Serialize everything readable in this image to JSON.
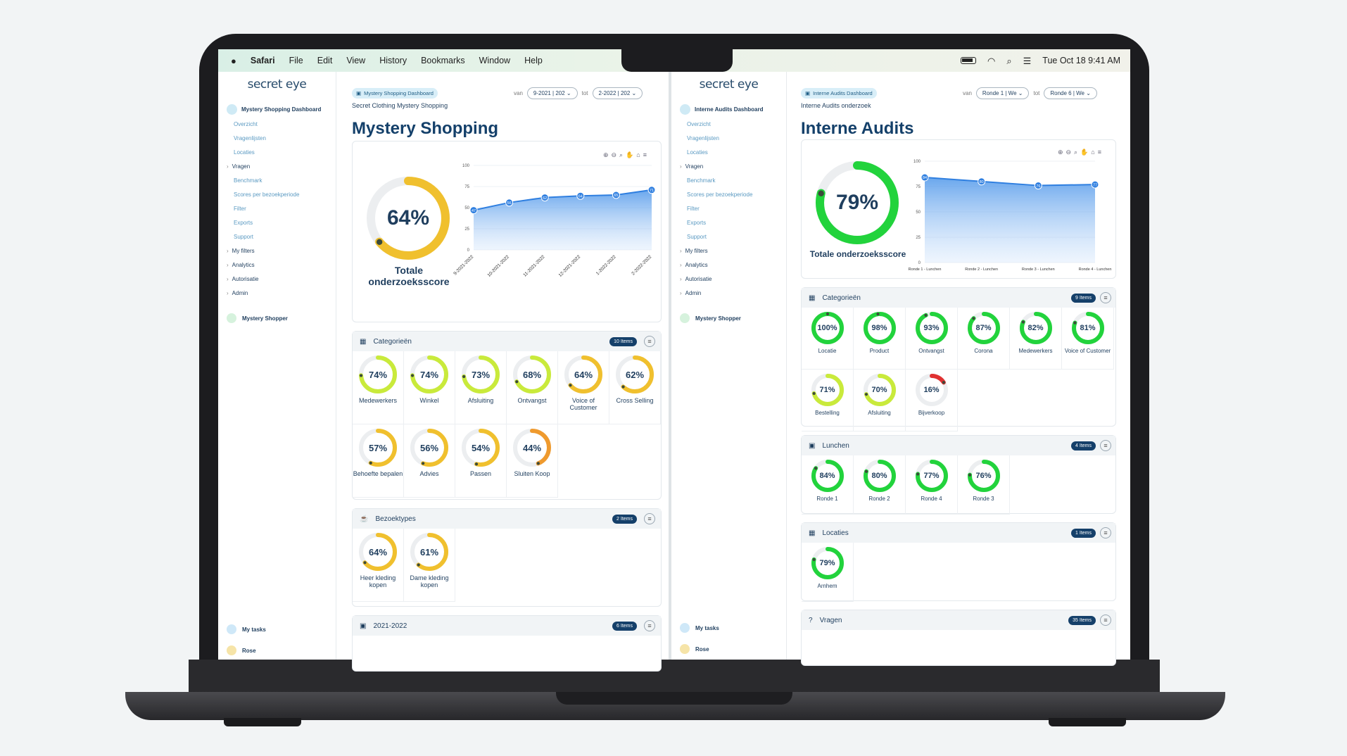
{
  "menubar": {
    "app": "Safari",
    "items": [
      "File",
      "Edit",
      "View",
      "History",
      "Bookmarks",
      "Window",
      "Help"
    ],
    "datetime": "Tue Oct 18  9:41 AM"
  },
  "colors": {
    "accent": "#15406a",
    "green": "#22d33c",
    "lime": "#c9ea3b",
    "orange": "#ef9a2e",
    "red": "#e03131"
  },
  "left": {
    "logo": "secret eye",
    "nav": {
      "dashboard": "Mystery Shopping Dashboard",
      "items": [
        "Overzicht",
        "Vragenlijsten",
        "Locaties"
      ],
      "vragen": "Vragen",
      "items2": [
        "Benchmark",
        "Scores per bezoekperiode",
        "Filter",
        "Exports",
        "Support"
      ],
      "groups": [
        "My filters",
        "Analytics",
        "Autorisatie",
        "Admin"
      ],
      "shopper": "Mystery Shopper",
      "tasks": "My tasks",
      "user": "Rose"
    },
    "chip": "Mystery Shopping Dashboard",
    "subtitle": "Secret Clothing Mystery Shopping",
    "title": "Mystery Shopping",
    "range": {
      "van": "van",
      "from": "9-2021 | 202",
      "tot": "tot",
      "to": "2-2022 | 202"
    },
    "total": {
      "value": 64,
      "label": "64%",
      "caption": "Totale onderzoeksscore"
    },
    "chart_data": {
      "type": "area",
      "x": [
        "9-2021-2022",
        "10-2021-2022",
        "11-2021-2022",
        "12-2021-2022",
        "1-2022-2022",
        "2-2022-2022"
      ],
      "y": [
        47,
        56,
        62,
        64,
        65,
        71
      ],
      "ylim": [
        0,
        100
      ],
      "yticks": [
        "100",
        "75",
        "50",
        "25",
        "0"
      ]
    },
    "categories": {
      "title": "Categorieën",
      "badge": "10 Items",
      "items": [
        {
          "label": "Medewerkers",
          "value": 74,
          "text": "74%"
        },
        {
          "label": "Winkel",
          "value": 74,
          "text": "74%"
        },
        {
          "label": "Afsluiting",
          "value": 73,
          "text": "73%"
        },
        {
          "label": "Ontvangst",
          "value": 68,
          "text": "68%"
        },
        {
          "label": "Voice of Customer",
          "value": 64,
          "text": "64%"
        },
        {
          "label": "Cross Selling",
          "value": 62,
          "text": "62%"
        },
        {
          "label": "Behoefte bepalen",
          "value": 57,
          "text": "57%"
        },
        {
          "label": "Advies",
          "value": 56,
          "text": "56%"
        },
        {
          "label": "Passen",
          "value": 54,
          "text": "54%"
        },
        {
          "label": "Sluiten Koop",
          "value": 44,
          "text": "44%"
        }
      ]
    },
    "bezoektypes": {
      "title": "Bezoektypes",
      "badge": "2 Items",
      "items": [
        {
          "label": "Heer kleding kopen",
          "value": 64,
          "text": "64%"
        },
        {
          "label": "Dame kleding kopen",
          "value": 61,
          "text": "61%"
        }
      ]
    },
    "period": {
      "title": "2021-2022",
      "badge": "6 Items"
    }
  },
  "right": {
    "logo": "secret eye",
    "nav": {
      "dashboard": "Interne Audits Dashboard",
      "items": [
        "Overzicht",
        "Vragenlijsten",
        "Locaties"
      ],
      "vragen": "Vragen",
      "items2": [
        "Benchmark",
        "Scores per bezoekperiode",
        "Filter",
        "Exports",
        "Support"
      ],
      "groups": [
        "My filters",
        "Analytics",
        "Autorisatie",
        "Admin"
      ],
      "shopper": "Mystery Shopper",
      "tasks": "My tasks",
      "user": "Rose"
    },
    "chip": "Interne Audits Dashboard",
    "subtitle": "Interne Audits onderzoek",
    "title": "Interne Audits",
    "range": {
      "van": "van",
      "from": "Ronde 1 | We",
      "tot": "tot",
      "to": "Ronde 6 | We"
    },
    "total": {
      "value": 79,
      "label": "79%",
      "caption": "Totale onderzoeksscore"
    },
    "chart_data": {
      "type": "area",
      "x": [
        "Ronde 1 - Lunchen",
        "Ronde 2 - Lunchen",
        "Ronde 3 - Lunchen",
        "Ronde 4 - Lunchen"
      ],
      "y": [
        84,
        80,
        76,
        77
      ],
      "ylim": [
        0,
        100
      ],
      "yticks": [
        "100",
        "75",
        "50",
        "25",
        "0"
      ]
    },
    "categories": {
      "title": "Categorieën",
      "badge": "9 Items",
      "items": [
        {
          "label": "Locatie",
          "value": 100,
          "text": "100%"
        },
        {
          "label": "Product",
          "value": 98,
          "text": "98%"
        },
        {
          "label": "Ontvangst",
          "value": 93,
          "text": "93%"
        },
        {
          "label": "Corona",
          "value": 87,
          "text": "87%"
        },
        {
          "label": "Medewerkers",
          "value": 82,
          "text": "82%"
        },
        {
          "label": "Voice of Customer",
          "value": 81,
          "text": "81%"
        },
        {
          "label": "Bestelling",
          "value": 71,
          "text": "71%"
        },
        {
          "label": "Afsluiting",
          "value": 70,
          "text": "70%"
        },
        {
          "label": "Bijverkoop",
          "value": 16,
          "text": "16%"
        }
      ]
    },
    "lunchen": {
      "title": "Lunchen",
      "badge": "4 Items",
      "items": [
        {
          "label": "Ronde 1",
          "value": 84,
          "text": "84%"
        },
        {
          "label": "Ronde 2",
          "value": 80,
          "text": "80%"
        },
        {
          "label": "Ronde 4",
          "value": 77,
          "text": "77%"
        },
        {
          "label": "Ronde 3",
          "value": 76,
          "text": "76%"
        }
      ]
    },
    "locaties": {
      "title": "Locaties",
      "badge": "1 Items",
      "items": [
        {
          "label": "Arnhem",
          "value": 79,
          "text": "79%"
        }
      ]
    },
    "vragen": {
      "title": "Vragen",
      "badge": "35 Items"
    }
  }
}
